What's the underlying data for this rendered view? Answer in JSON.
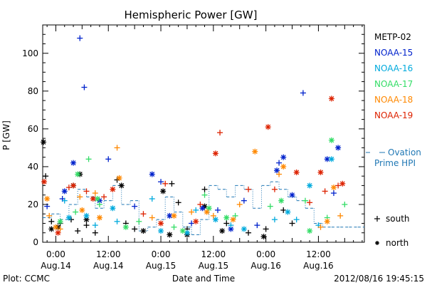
{
  "chart_data": {
    "type": "scatter",
    "title": "Hemispheric Power [GW]",
    "ylabel": "P [GW]",
    "xlabel": "Date and Time",
    "ylim": [
      0,
      115
    ],
    "xlim": [
      "2012-08-13T21:00",
      "2012-08-16T22:30"
    ],
    "yticks": [
      0,
      20,
      40,
      60,
      80,
      100
    ],
    "xticks": [
      {
        "time": "2012-08-14T00:00",
        "line1": "0:00",
        "line2": "Aug.14"
      },
      {
        "time": "2012-08-14T12:00",
        "line1": "12:00",
        "line2": "Aug.14"
      },
      {
        "time": "2012-08-15T00:00",
        "line1": "0:00",
        "line2": "Aug.15"
      },
      {
        "time": "2012-08-15T12:00",
        "line1": "12:00",
        "line2": "Aug.15"
      },
      {
        "time": "2012-08-16T00:00",
        "line1": "0:00",
        "line2": "Aug.16"
      },
      {
        "time": "2012-08-16T12:00",
        "line1": "12:00",
        "line2": "Aug.16"
      }
    ],
    "grid": false,
    "legend_position": "right",
    "marker_legend": [
      {
        "symbol": "+",
        "label": "south"
      },
      {
        "symbol": "*",
        "label": "north"
      }
    ],
    "ovation_label_line1": "Ovation",
    "ovation_label_line2": "Prime HPI",
    "ovation_color": "#1f77b4",
    "series": [
      {
        "name": "METP-02",
        "color": "#000000",
        "south": [
          [
            "2012-08-13T21:40",
            35
          ],
          [
            "2012-08-13T23:00",
            11
          ],
          [
            "2012-08-14T01:00",
            10
          ],
          [
            "2012-08-14T03:30",
            12
          ],
          [
            "2012-08-14T05:00",
            6
          ],
          [
            "2012-08-14T07:00",
            9
          ],
          [
            "2012-08-14T09:00",
            5
          ],
          [
            "2012-08-14T14:00",
            33
          ],
          [
            "2012-08-14T16:00",
            10
          ],
          [
            "2012-08-14T18:00",
            7
          ],
          [
            "2012-08-15T02:30",
            31
          ],
          [
            "2012-08-15T04:00",
            21
          ],
          [
            "2012-08-15T06:00",
            7
          ],
          [
            "2012-08-15T10:00",
            28
          ],
          [
            "2012-08-15T15:00",
            10
          ],
          [
            "2012-08-15T20:00",
            5
          ],
          [
            "2012-08-16T00:00",
            7
          ],
          [
            "2012-08-16T04:00",
            17
          ],
          [
            "2012-08-16T06:00",
            10
          ]
        ],
        "north": [
          [
            "2012-08-13T21:10",
            53
          ],
          [
            "2012-08-13T23:00",
            7
          ],
          [
            "2012-08-14T00:30",
            8
          ],
          [
            "2012-08-14T04:00",
            30
          ],
          [
            "2012-08-14T05:30",
            36
          ],
          [
            "2012-08-14T07:00",
            12
          ],
          [
            "2012-08-14T15:00",
            30
          ],
          [
            "2012-08-14T20:00",
            6
          ],
          [
            "2012-08-15T00:30",
            27
          ],
          [
            "2012-08-15T02:00",
            4
          ],
          [
            "2012-08-15T06:00",
            4
          ],
          [
            "2012-08-15T10:00",
            19
          ],
          [
            "2012-08-15T14:00",
            6
          ],
          [
            "2012-08-15T23:30",
            3
          ]
        ]
      },
      {
        "name": "NOAA-15",
        "color": "#0022cc",
        "south": [
          [
            "2012-08-13T22:00",
            19
          ],
          [
            "2012-08-14T01:30",
            23
          ],
          [
            "2012-08-14T05:30",
            108
          ],
          [
            "2012-08-14T06:30",
            82
          ],
          [
            "2012-08-14T12:00",
            44
          ],
          [
            "2012-08-14T18:00",
            19
          ],
          [
            "2012-08-15T00:00",
            32
          ],
          [
            "2012-08-15T07:00",
            10
          ],
          [
            "2012-08-15T13:00",
            17
          ],
          [
            "2012-08-15T19:00",
            22
          ],
          [
            "2012-08-15T22:00",
            9
          ],
          [
            "2012-08-16T03:00",
            42
          ],
          [
            "2012-08-16T08:30",
            79
          ],
          [
            "2012-08-16T15:30",
            26
          ]
        ],
        "north": [
          [
            "2012-08-14T02:00",
            27
          ],
          [
            "2012-08-14T04:00",
            42
          ],
          [
            "2012-08-14T10:00",
            22
          ],
          [
            "2012-08-14T22:00",
            36
          ],
          [
            "2012-08-15T02:00",
            14
          ],
          [
            "2012-08-15T09:30",
            18
          ],
          [
            "2012-08-15T16:00",
            7
          ],
          [
            "2012-08-16T02:30",
            38
          ],
          [
            "2012-08-16T04:00",
            45
          ],
          [
            "2012-08-16T06:00",
            25
          ],
          [
            "2012-08-16T14:00",
            44
          ],
          [
            "2012-08-16T16:30",
            50
          ]
        ]
      },
      {
        "name": "NOAA-16",
        "color": "#00aadd",
        "south": [
          [
            "2012-08-14T02:00",
            22
          ],
          [
            "2012-08-14T09:00",
            9
          ],
          [
            "2012-08-14T14:00",
            11
          ],
          [
            "2012-08-14T22:00",
            23
          ],
          [
            "2012-08-15T08:00",
            17
          ],
          [
            "2012-08-15T16:00",
            9
          ],
          [
            "2012-08-16T02:00",
            12
          ],
          [
            "2012-08-16T07:00",
            12
          ],
          [
            "2012-08-16T12:00",
            9
          ]
        ],
        "north": [
          [
            "2012-08-14T03:00",
            13
          ],
          [
            "2012-08-14T07:00",
            14
          ],
          [
            "2012-08-14T13:00",
            18
          ],
          [
            "2012-08-15T00:00",
            6
          ],
          [
            "2012-08-15T06:00",
            5
          ],
          [
            "2012-08-15T12:30",
            12
          ],
          [
            "2012-08-15T19:00",
            7
          ],
          [
            "2012-08-16T05:00",
            16
          ],
          [
            "2012-08-16T10:00",
            30
          ],
          [
            "2012-08-16T15:00",
            44
          ]
        ]
      },
      {
        "name": "NOAA-17",
        "color": "#33dd66",
        "south": [
          [
            "2012-08-14T04:30",
            16
          ],
          [
            "2012-08-14T07:30",
            44
          ],
          [
            "2012-08-14T10:00",
            20
          ],
          [
            "2012-08-14T19:00",
            11
          ],
          [
            "2012-08-15T03:00",
            8
          ],
          [
            "2012-08-15T10:00",
            25
          ],
          [
            "2012-08-15T17:00",
            14
          ],
          [
            "2012-08-16T01:00",
            19
          ],
          [
            "2012-08-16T09:00",
            22
          ],
          [
            "2012-08-16T14:00",
            13
          ],
          [
            "2012-08-16T18:00",
            20
          ]
        ],
        "north": [
          [
            "2012-08-14T01:00",
            11
          ],
          [
            "2012-08-14T05:00",
            36
          ],
          [
            "2012-08-14T09:30",
            23
          ],
          [
            "2012-08-14T16:00",
            8
          ],
          [
            "2012-08-15T05:00",
            6
          ],
          [
            "2012-08-15T11:00",
            18
          ],
          [
            "2012-08-15T15:00",
            13
          ],
          [
            "2012-08-16T03:30",
            22
          ],
          [
            "2012-08-16T10:00",
            6
          ],
          [
            "2012-08-16T15:00",
            54
          ]
        ]
      },
      {
        "name": "NOAA-18",
        "color": "#ff8800",
        "south": [
          [
            "2012-08-13T22:30",
            14
          ],
          [
            "2012-08-14T01:00",
            7
          ],
          [
            "2012-08-14T05:30",
            24
          ],
          [
            "2012-08-14T09:00",
            26
          ],
          [
            "2012-08-14T14:00",
            50
          ],
          [
            "2012-08-14T22:00",
            13
          ],
          [
            "2012-08-15T07:00",
            16
          ],
          [
            "2012-08-15T12:00",
            14
          ],
          [
            "2012-08-15T18:00",
            20
          ],
          [
            "2012-08-16T03:00",
            36
          ],
          [
            "2012-08-16T12:30",
            8
          ],
          [
            "2012-08-16T17:00",
            14
          ]
        ],
        "north": [
          [
            "2012-08-13T22:00",
            23
          ],
          [
            "2012-08-14T00:00",
            8
          ],
          [
            "2012-08-14T06:00",
            17
          ],
          [
            "2012-08-14T10:00",
            13
          ],
          [
            "2012-08-14T14:30",
            34
          ],
          [
            "2012-08-15T03:00",
            14
          ],
          [
            "2012-08-15T10:30",
            16
          ],
          [
            "2012-08-15T16:30",
            12
          ],
          [
            "2012-08-15T21:30",
            48
          ],
          [
            "2012-08-16T04:00",
            40
          ],
          [
            "2012-08-16T14:00",
            11
          ],
          [
            "2012-08-16T15:30",
            29
          ]
        ]
      },
      {
        "name": "NOAA-19",
        "color": "#dd2200",
        "south": [
          [
            "2012-08-14T03:00",
            29
          ],
          [
            "2012-08-14T07:00",
            27
          ],
          [
            "2012-08-14T11:00",
            24
          ],
          [
            "2012-08-14T20:00",
            15
          ],
          [
            "2012-08-15T01:00",
            31
          ],
          [
            "2012-08-15T09:00",
            20
          ],
          [
            "2012-08-15T13:30",
            58
          ],
          [
            "2012-08-15T20:00",
            28
          ],
          [
            "2012-08-16T02:00",
            28
          ],
          [
            "2012-08-16T10:00",
            21
          ],
          [
            "2012-08-16T13:30",
            27
          ],
          [
            "2012-08-16T16:30",
            30
          ]
        ],
        "north": [
          [
            "2012-08-13T21:20",
            32
          ],
          [
            "2012-08-14T00:30",
            5
          ],
          [
            "2012-08-14T04:00",
            30
          ],
          [
            "2012-08-14T08:30",
            23
          ],
          [
            "2012-08-14T13:00",
            28
          ],
          [
            "2012-08-15T00:00",
            10
          ],
          [
            "2012-08-15T08:00",
            11
          ],
          [
            "2012-08-15T12:30",
            47
          ],
          [
            "2012-08-16T00:30",
            61
          ],
          [
            "2012-08-16T07:00",
            37
          ],
          [
            "2012-08-16T12:30",
            37
          ],
          [
            "2012-08-16T15:00",
            76
          ],
          [
            "2012-08-16T17:30",
            31
          ]
        ]
      }
    ],
    "ovation_hpi": [
      [
        "2012-08-13T21:00",
        13
      ],
      [
        "2012-08-13T23:00",
        15
      ],
      [
        "2012-08-14T01:00",
        12
      ],
      [
        "2012-08-14T03:00",
        20
      ],
      [
        "2012-08-14T05:00",
        28
      ],
      [
        "2012-08-14T07:00",
        24
      ],
      [
        "2012-08-14T09:00",
        18
      ],
      [
        "2012-08-14T11:00",
        22
      ],
      [
        "2012-08-14T13:00",
        30
      ],
      [
        "2012-08-14T15:00",
        20
      ],
      [
        "2012-08-14T17:00",
        22
      ],
      [
        "2012-08-14T19:00",
        6
      ],
      [
        "2012-08-14T21:00",
        8
      ],
      [
        "2012-08-14T23:00",
        12
      ],
      [
        "2012-08-15T01:00",
        24
      ],
      [
        "2012-08-15T03:00",
        16
      ],
      [
        "2012-08-15T05:00",
        8
      ],
      [
        "2012-08-15T07:00",
        4
      ],
      [
        "2012-08-15T09:00",
        12
      ],
      [
        "2012-08-15T11:00",
        30
      ],
      [
        "2012-08-15T13:00",
        28
      ],
      [
        "2012-08-15T15:00",
        24
      ],
      [
        "2012-08-15T17:00",
        30
      ],
      [
        "2012-08-15T19:00",
        28
      ],
      [
        "2012-08-15T21:00",
        18
      ],
      [
        "2012-08-15T23:00",
        30
      ],
      [
        "2012-08-16T01:00",
        32
      ],
      [
        "2012-08-16T03:00",
        28
      ],
      [
        "2012-08-16T05:00",
        24
      ],
      [
        "2012-08-16T07:00",
        22
      ],
      [
        "2012-08-16T09:00",
        18
      ],
      [
        "2012-08-16T11:00",
        10
      ],
      [
        "2012-08-16T13:00",
        8
      ],
      [
        "2012-08-16T15:00",
        8
      ],
      [
        "2012-08-16T17:00",
        8
      ],
      [
        "2012-08-16T19:00",
        8
      ],
      [
        "2012-08-16T21:00",
        8
      ],
      [
        "2012-08-16T22:30",
        8
      ]
    ]
  },
  "footer": {
    "plot_credit": "Plot: CCMC",
    "timestamp": "2012/08/16 19:45:15"
  }
}
